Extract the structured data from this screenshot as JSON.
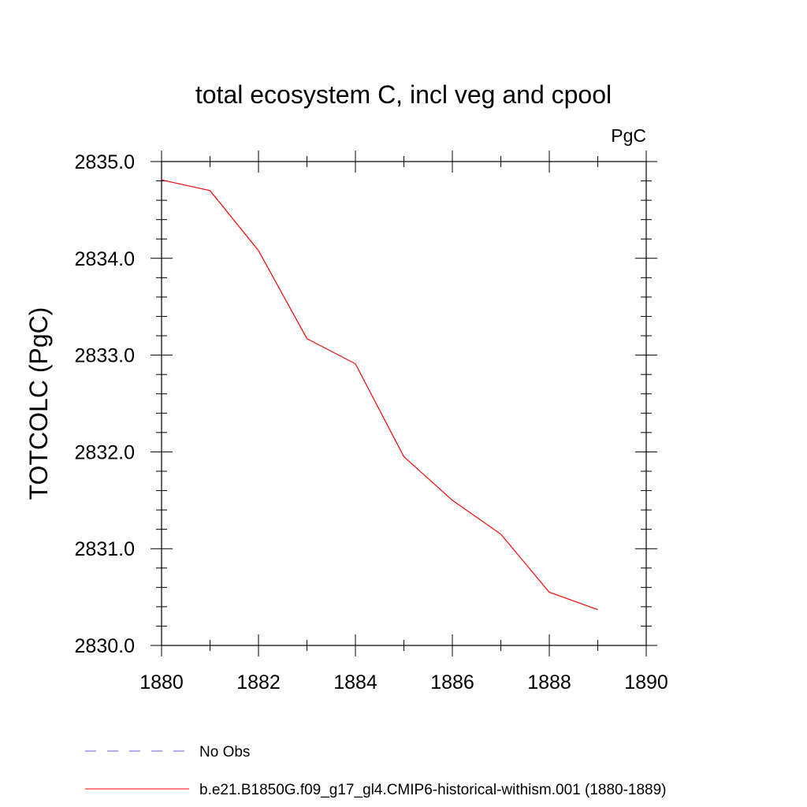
{
  "chart_data": {
    "type": "line",
    "title": "total ecosystem C, incl veg and cpool",
    "units": "PgC",
    "ylabel": "TOTCOLC  (PgC)",
    "xlabel": "",
    "xlim": [
      1880,
      1890
    ],
    "ylim": [
      2830.0,
      2835.0
    ],
    "x_ticks": [
      "1880",
      "1882",
      "1884",
      "1886",
      "1888",
      "1890"
    ],
    "y_ticks": [
      "2830.0",
      "2831.0",
      "2832.0",
      "2833.0",
      "2834.0",
      "2835.0"
    ],
    "x_tick_values": [
      1880,
      1882,
      1884,
      1886,
      1888,
      1890
    ],
    "y_tick_values": [
      2830.0,
      2831.0,
      2832.0,
      2833.0,
      2834.0,
      2835.0
    ],
    "series": [
      {
        "name": "b.e21.B1850G.f09_g17_gl4.CMIP6-historical-withism.001 (1880-1889)",
        "color": "#ff0000",
        "style": "solid",
        "x": [
          1880,
          1881,
          1882,
          1883,
          1884,
          1885,
          1886,
          1887,
          1888,
          1889
        ],
        "y": [
          2834.81,
          2834.7,
          2834.08,
          2833.17,
          2832.91,
          2831.95,
          2831.5,
          2831.15,
          2830.55,
          2830.37
        ]
      }
    ],
    "legend": [
      {
        "label": "No Obs",
        "color": "#6a5acd",
        "style": "dashed"
      },
      {
        "label": "b.e21.B1850G.f09_g17_gl4.CMIP6-historical-withism.001 (1880-1889)",
        "color": "#ff0000",
        "style": "solid"
      }
    ],
    "legend_position": "bottom-left",
    "grid": false
  }
}
